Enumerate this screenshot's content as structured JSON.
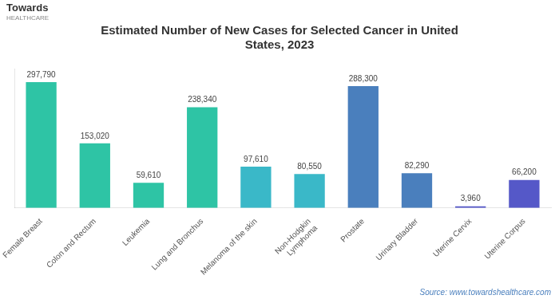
{
  "chart_data": {
    "type": "bar",
    "title": "Estimated Number of New Cases for Selected Cancer in United\nStates, 2023",
    "categories": [
      "Female Breast",
      "Colon and Rectum",
      "Leukemia",
      "Lung and Bronchus",
      "Melanoma of the skin",
      "Non-Hodgkin\nLymphoma",
      "Prostate",
      "Urinary Bladder",
      "Uterine Cervix",
      "Uterine Corpus"
    ],
    "values": [
      297790,
      153020,
      59610,
      238340,
      97610,
      80550,
      288300,
      82290,
      3960,
      66200
    ],
    "value_labels": [
      "297,790",
      "153,020",
      "59,610",
      "238,340",
      "97,610",
      "80,550",
      "288,300",
      "82,290",
      "3,960",
      "66,200"
    ],
    "colors": [
      "#2ec4a5",
      "#2ec4a5",
      "#2ec4a5",
      "#2ec4a5",
      "#3ab8c8",
      "#3ab8c8",
      "#4a7fbd",
      "#4a7fbd",
      "#5558c8",
      "#5558c8"
    ],
    "ylim": [
      0,
      330000
    ],
    "data_labels": true,
    "tick_labels": "x",
    "grid": false,
    "annotations": [
      "Towards",
      "HEALTHCARE",
      "Source: www.towardshealthcare.com"
    ]
  }
}
